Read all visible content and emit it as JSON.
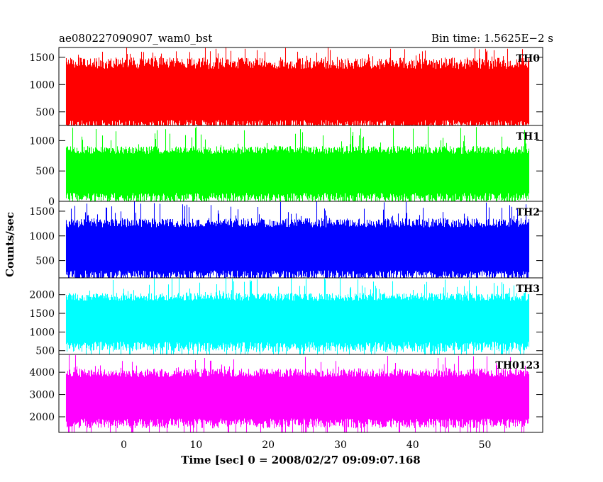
{
  "chart_data": {
    "type": "line",
    "title_left": "ae080227090907_wam0_bst",
    "title_right": "Bin time: 1.5625E−2 s",
    "xlabel": "Time [sec] 0 = 2008/02/27 09:09:07.168",
    "ylabel": "Counts/sec",
    "xlim": [
      -9,
      58
    ],
    "x_ticks": [
      0,
      10,
      20,
      30,
      40,
      50
    ],
    "x_data_range": [
      -8,
      56
    ],
    "bin_time": 0.015625,
    "grid": false,
    "panels": [
      {
        "name": "TH0",
        "color": "#ff0000",
        "ylim": [
          250,
          1680
        ],
        "y_ticks": [
          500,
          1000,
          1500
        ],
        "band_low": 250,
        "band_high": 1350,
        "spike_max": 1680,
        "mean": 750
      },
      {
        "name": "TH1",
        "color": "#00ff00",
        "ylim": [
          0,
          1250
        ],
        "y_ticks": [
          0,
          500,
          1000
        ],
        "band_low": 60,
        "band_high": 820,
        "spike_max": 1250,
        "mean": 450
      },
      {
        "name": "TH2",
        "color": "#0000ff",
        "ylim": [
          150,
          1700
        ],
        "y_ticks": [
          500,
          1000,
          1500
        ],
        "band_low": 200,
        "band_high": 1230,
        "spike_max": 1700,
        "mean": 700
      },
      {
        "name": "TH3",
        "color": "#00ffff",
        "ylim": [
          400,
          2450
        ],
        "y_ticks": [
          500,
          1000,
          1500,
          2000
        ],
        "band_low": 600,
        "band_high": 1900,
        "spike_max": 2450,
        "mean": 1300
      },
      {
        "name": "TH0123",
        "color": "#ff00ff",
        "ylim": [
          1300,
          4800
        ],
        "y_ticks": [
          2000,
          3000,
          4000
        ],
        "band_low": 1700,
        "band_high": 3900,
        "spike_max": 4800,
        "mean": 2800
      }
    ]
  }
}
